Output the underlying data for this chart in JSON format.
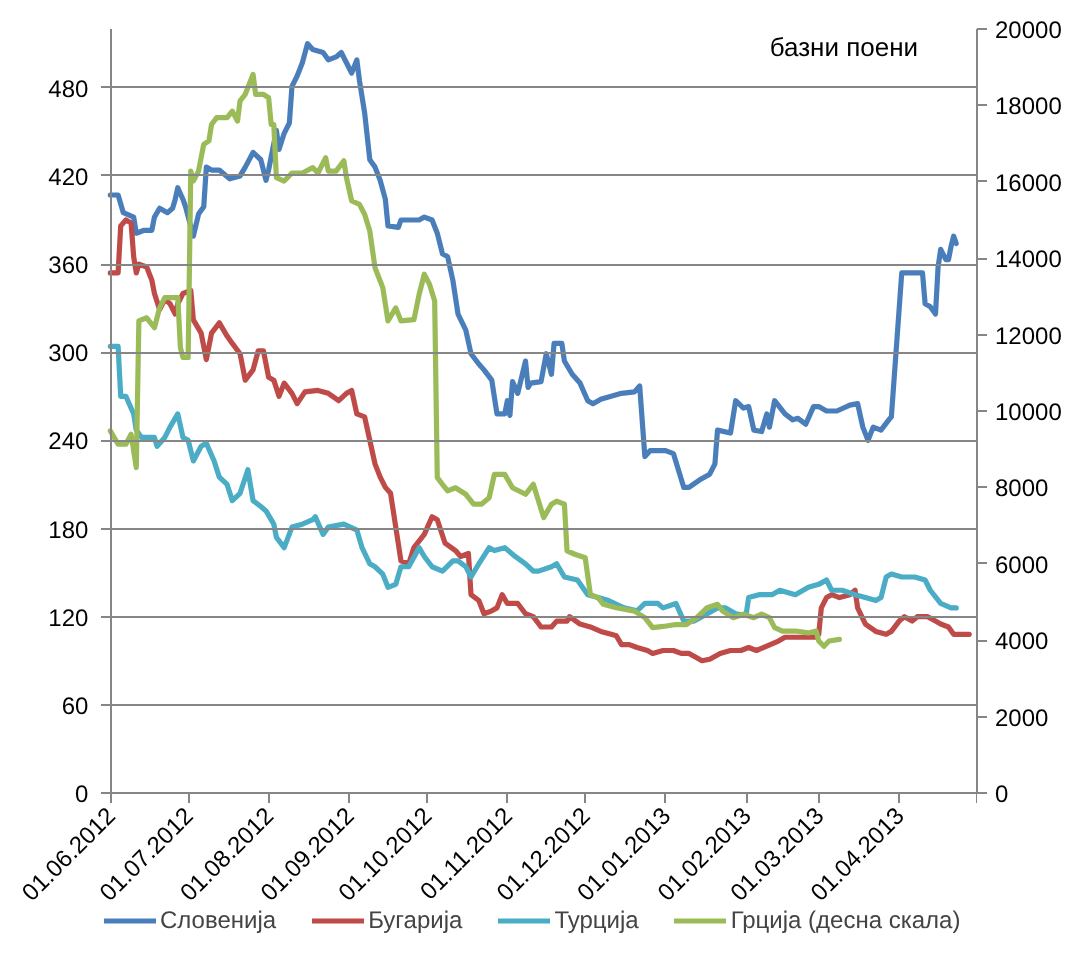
{
  "chart_data": {
    "type": "line",
    "annotations": [
      "базни поени"
    ],
    "xlim": [
      "2012-06-01",
      "2013-05-01"
    ],
    "xticks": [
      {
        "value": "2012-06-01",
        "label": "01.06.2012"
      },
      {
        "value": "2012-07-01",
        "label": "01.07.2012"
      },
      {
        "value": "2012-08-01",
        "label": "01.08.2012"
      },
      {
        "value": "2012-09-01",
        "label": "01.09.2012"
      },
      {
        "value": "2012-10-01",
        "label": "01.10.2012"
      },
      {
        "value": "2012-11-01",
        "label": "01.11.2012"
      },
      {
        "value": "2012-12-01",
        "label": "01.12.2012"
      },
      {
        "value": "2013-01-01",
        "label": "01.01.2013"
      },
      {
        "value": "2013-02-01",
        "label": "01.02.2013"
      },
      {
        "value": "2013-03-01",
        "label": "01.03.2013"
      },
      {
        "value": "2013-04-01",
        "label": "01.04.2013"
      },
      {
        "value": "2013-05-01",
        "label": null
      }
    ],
    "ylim": [
      0,
      520
    ],
    "yticks": [
      0,
      60,
      120,
      180,
      240,
      300,
      360,
      420,
      480
    ],
    "y2lim": [
      0,
      20000
    ],
    "y2ticks": [
      0,
      2000,
      4000,
      6000,
      8000,
      10000,
      12000,
      14000,
      16000,
      18000,
      20000
    ],
    "grid": "y",
    "legend": "bottom",
    "series": [
      {
        "name": "Словенија",
        "color": "#4a7ebb",
        "x": [
          "2012-06-01",
          "2012-06-04",
          "2012-06-06",
          "2012-06-10",
          "2012-06-11",
          "2012-06-14",
          "2012-06-17",
          "2012-06-18",
          "2012-06-20",
          "2012-06-23",
          "2012-06-25",
          "2012-06-26",
          "2012-06-27",
          "2012-06-29",
          "2012-06-30",
          "2012-07-03",
          "2012-07-05",
          "2012-07-07",
          "2012-07-08",
          "2012-07-10",
          "2012-07-13",
          "2012-07-17",
          "2012-07-21",
          "2012-07-23",
          "2012-07-26",
          "2012-07-29",
          "2012-07-31",
          "2012-08-01",
          "2012-08-04",
          "2012-08-05",
          "2012-08-07",
          "2012-08-09",
          "2012-08-10",
          "2012-08-12",
          "2012-08-14",
          "2012-08-16",
          "2012-08-18",
          "2012-08-22",
          "2012-08-24",
          "2012-08-27",
          "2012-08-29",
          "2012-08-31",
          "2012-09-02",
          "2012-09-04",
          "2012-09-05",
          "2012-09-07",
          "2012-09-09",
          "2012-09-11",
          "2012-09-13",
          "2012-09-15",
          "2012-09-16",
          "2012-09-20",
          "2012-09-21",
          "2012-09-28",
          "2012-09-30",
          "2012-10-03",
          "2012-10-05",
          "2012-10-07",
          "2012-10-09",
          "2012-10-11",
          "2012-10-13",
          "2012-10-16",
          "2012-10-18",
          "2012-10-21",
          "2012-10-23",
          "2012-10-26",
          "2012-10-28",
          "2012-10-31",
          "2012-11-01",
          "2012-11-02",
          "2012-11-03",
          "2012-11-05",
          "2012-11-08",
          "2012-11-09",
          "2012-11-10",
          "2012-11-14",
          "2012-11-16",
          "2012-11-18",
          "2012-11-19",
          "2012-11-22",
          "2012-11-23",
          "2012-11-26",
          "2012-11-29",
          "2012-12-02",
          "2012-12-04",
          "2012-12-07",
          "2012-12-11",
          "2012-12-15",
          "2012-12-20",
          "2012-12-22",
          "2012-12-24",
          "2012-12-26",
          "2013-01-01",
          "2013-01-04",
          "2013-01-08",
          "2013-01-10",
          "2013-01-14",
          "2013-01-18",
          "2013-01-20",
          "2013-01-21",
          "2013-01-26",
          "2013-01-28",
          "2013-01-31",
          "2013-02-02",
          "2013-02-04",
          "2013-02-07",
          "2013-02-09",
          "2013-02-10",
          "2013-02-12",
          "2013-02-16",
          "2013-02-19",
          "2013-02-21",
          "2013-02-24",
          "2013-02-27",
          "2013-03-01",
          "2013-03-04",
          "2013-03-08",
          "2013-03-13",
          "2013-03-16",
          "2013-03-18",
          "2013-03-20",
          "2013-03-22",
          "2013-03-25",
          "2013-03-28",
          "2013-03-29",
          "2013-04-02",
          "2013-04-10",
          "2013-04-11",
          "2013-04-13",
          "2013-04-15",
          "2013-04-16",
          "2013-04-17",
          "2013-04-19",
          "2013-04-20",
          "2013-04-21",
          "2013-04-22",
          "2013-04-23"
        ],
        "values": [
          407,
          407,
          395,
          392,
          381,
          383,
          383,
          392,
          398,
          395,
          398,
          404,
          412,
          404,
          399,
          379,
          394,
          399,
          426,
          424,
          424,
          418,
          420,
          426,
          436,
          431,
          417,
          424,
          451,
          438,
          449,
          456,
          481,
          488,
          497,
          510,
          506,
          504,
          499,
          501,
          504,
          497,
          490,
          499,
          485,
          463,
          431,
          426,
          417,
          404,
          386,
          385,
          390,
          390,
          392,
          390,
          381,
          367,
          365,
          349,
          326,
          315,
          299,
          292,
          288,
          281,
          258,
          258,
          267,
          257,
          280,
          272,
          294,
          276,
          279,
          280,
          299,
          285,
          306,
          306,
          294,
          285,
          279,
          267,
          265,
          268,
          270,
          272,
          273,
          277,
          229,
          233,
          233,
          231,
          208,
          208,
          213,
          217,
          224,
          247,
          245,
          267,
          262,
          263,
          247,
          246,
          258,
          249,
          267,
          258,
          254,
          255,
          251,
          263,
          263,
          260,
          260,
          264,
          265,
          249,
          240,
          249,
          247,
          254,
          256,
          354,
          354,
          333,
          331,
          326,
          358,
          370,
          363,
          363,
          372,
          379,
          374
        ]
      },
      {
        "name": "Бугарија",
        "color": "#be4b48",
        "x": [
          "2012-06-01",
          "2012-06-04",
          "2012-06-05",
          "2012-06-07",
          "2012-06-09",
          "2012-06-10",
          "2012-06-11",
          "2012-06-12",
          "2012-06-15",
          "2012-06-17",
          "2012-06-18",
          "2012-06-20",
          "2012-06-22",
          "2012-06-24",
          "2012-06-26",
          "2012-06-27",
          "2012-06-29",
          "2012-07-02",
          "2012-07-03",
          "2012-07-06",
          "2012-07-08",
          "2012-07-10",
          "2012-07-13",
          "2012-07-16",
          "2012-07-18",
          "2012-07-21",
          "2012-07-23",
          "2012-07-26",
          "2012-07-28",
          "2012-07-30",
          "2012-08-01",
          "2012-08-03",
          "2012-08-05",
          "2012-08-07",
          "2012-08-10",
          "2012-08-12",
          "2012-08-15",
          "2012-08-20",
          "2012-08-24",
          "2012-08-28",
          "2012-08-31",
          "2012-09-02",
          "2012-09-04",
          "2012-09-07",
          "2012-09-09",
          "2012-09-11",
          "2012-09-13",
          "2012-09-15",
          "2012-09-17",
          "2012-09-19",
          "2012-09-21",
          "2012-09-24",
          "2012-09-26",
          "2012-09-30",
          "2012-10-03",
          "2012-10-05",
          "2012-10-08",
          "2012-10-12",
          "2012-10-14",
          "2012-10-17",
          "2012-10-18",
          "2012-10-21",
          "2012-10-23",
          "2012-10-26",
          "2012-10-28",
          "2012-10-30",
          "2012-11-01",
          "2012-11-05",
          "2012-11-08",
          "2012-11-11",
          "2012-11-14",
          "2012-11-18",
          "2012-11-20",
          "2012-11-24",
          "2012-11-25",
          "2012-11-29",
          "2012-12-03",
          "2012-12-07",
          "2012-12-11",
          "2012-12-13",
          "2012-12-15",
          "2012-12-18",
          "2012-12-21",
          "2012-12-25",
          "2012-12-27",
          "2012-12-31",
          "2013-01-04",
          "2013-01-07",
          "2013-01-10",
          "2013-01-13",
          "2013-01-15",
          "2013-01-18",
          "2013-01-22",
          "2013-01-26",
          "2013-01-30",
          "2013-02-02",
          "2013-02-05",
          "2013-02-09",
          "2013-02-13",
          "2013-02-16",
          "2013-02-25",
          "2013-02-28",
          "2013-03-01",
          "2013-03-02",
          "2013-03-04",
          "2013-03-06",
          "2013-03-09",
          "2013-03-13",
          "2013-03-15",
          "2013-03-16",
          "2013-03-19",
          "2013-03-23",
          "2013-03-27",
          "2013-03-29",
          "2013-04-01",
          "2013-04-03",
          "2013-04-06",
          "2013-04-08",
          "2013-04-12",
          "2013-04-15",
          "2013-04-17",
          "2013-04-20",
          "2013-04-22",
          "2013-04-28"
        ],
        "values": [
          354,
          354,
          386,
          390,
          388,
          365,
          354,
          360,
          358,
          349,
          340,
          329,
          336,
          333,
          326,
          333,
          340,
          342,
          322,
          313,
          295,
          313,
          320,
          311,
          306,
          299,
          281,
          288,
          301,
          301,
          283,
          281,
          270,
          279,
          272,
          265,
          273,
          274,
          272,
          267,
          272,
          274,
          258,
          256,
          240,
          224,
          215,
          208,
          204,
          181,
          158,
          156,
          167,
          176,
          188,
          186,
          170,
          165,
          161,
          163,
          135,
          131,
          122,
          124,
          126,
          135,
          129,
          129,
          122,
          120,
          113,
          113,
          117,
          117,
          120,
          115,
          113,
          110,
          108,
          107,
          101,
          101,
          99,
          97,
          95,
          97,
          97,
          95,
          95,
          92,
          90,
          91,
          95,
          97,
          97,
          99,
          97,
          100,
          103,
          106,
          106,
          106,
          108,
          126,
          133,
          135,
          133,
          135,
          138,
          126,
          115,
          110,
          108,
          110,
          117,
          120,
          117,
          120,
          120,
          117,
          115,
          113,
          108,
          108
        ]
      },
      {
        "name": "Турција",
        "color": "#4bacc6",
        "x": [
          "2012-06-01",
          "2012-06-04",
          "2012-06-05",
          "2012-06-07",
          "2012-06-10",
          "2012-06-11",
          "2012-06-13",
          "2012-06-18",
          "2012-06-19",
          "2012-06-22",
          "2012-06-24",
          "2012-06-27",
          "2012-06-29",
          "2012-07-01",
          "2012-07-03",
          "2012-07-06",
          "2012-07-08",
          "2012-07-11",
          "2012-07-13",
          "2012-07-16",
          "2012-07-18",
          "2012-07-21",
          "2012-07-24",
          "2012-07-26",
          "2012-07-29",
          "2012-07-31",
          "2012-08-03",
          "2012-08-04",
          "2012-08-07",
          "2012-08-10",
          "2012-08-14",
          "2012-08-18",
          "2012-08-19",
          "2012-08-22",
          "2012-08-24",
          "2012-08-30",
          "2012-09-04",
          "2012-09-06",
          "2012-09-09",
          "2012-09-11",
          "2012-09-14",
          "2012-09-16",
          "2012-09-19",
          "2012-09-21",
          "2012-09-24",
          "2012-09-28",
          "2012-09-30",
          "2012-10-03",
          "2012-10-07",
          "2012-10-11",
          "2012-10-13",
          "2012-10-16",
          "2012-10-18",
          "2012-10-21",
          "2012-10-25",
          "2012-10-27",
          "2012-10-31",
          "2012-11-04",
          "2012-11-08",
          "2012-11-11",
          "2012-11-13",
          "2012-11-18",
          "2012-11-20",
          "2012-11-23",
          "2012-11-28",
          "2012-12-02",
          "2012-12-06",
          "2012-12-10",
          "2012-12-16",
          "2012-12-21",
          "2012-12-24",
          "2012-12-29",
          "2012-12-31",
          "2013-01-05",
          "2013-01-08",
          "2013-01-12",
          "2013-01-15",
          "2013-01-21",
          "2013-01-24",
          "2013-01-28",
          "2013-02-01",
          "2013-02-02",
          "2013-02-06",
          "2013-02-11",
          "2013-02-14",
          "2013-02-20",
          "2013-02-25",
          "2013-03-01",
          "2013-03-04",
          "2013-03-06",
          "2013-03-10",
          "2013-03-15",
          "2013-03-19",
          "2013-03-23",
          "2013-03-25",
          "2013-03-27",
          "2013-03-29",
          "2013-04-02",
          "2013-04-07",
          "2013-04-11",
          "2013-04-13",
          "2013-04-17",
          "2013-04-21",
          "2013-04-23"
        ],
        "values": [
          304,
          304,
          270,
          270,
          258,
          247,
          242,
          242,
          236,
          242,
          249,
          258,
          242,
          240,
          226,
          236,
          238,
          226,
          215,
          210,
          199,
          204,
          220,
          199,
          195,
          192,
          183,
          174,
          167,
          181,
          183,
          186,
          188,
          176,
          181,
          183,
          179,
          167,
          156,
          154,
          149,
          140,
          142,
          154,
          154,
          167,
          161,
          154,
          151,
          158,
          158,
          154,
          147,
          156,
          167,
          165,
          167,
          161,
          156,
          151,
          151,
          154,
          156,
          147,
          145,
          135,
          133,
          131,
          126,
          124,
          129,
          129,
          126,
          129,
          117,
          117,
          120,
          126,
          126,
          122,
          121,
          133,
          135,
          135,
          138,
          135,
          140,
          142,
          145,
          138,
          138,
          135,
          133,
          131,
          133,
          147,
          149,
          147,
          147,
          145,
          138,
          129,
          126,
          126
        ]
      },
      {
        "name": "Грција (десна скала)",
        "color": "#9bbb59",
        "axis": "y2",
        "x": [
          "2012-06-01",
          "2012-06-04",
          "2012-06-07",
          "2012-06-09",
          "2012-06-11",
          "2012-06-12",
          "2012-06-15",
          "2012-06-18",
          "2012-06-20",
          "2012-06-22",
          "2012-06-27",
          "2012-06-28",
          "2012-06-29",
          "2012-07-01",
          "2012-07-02",
          "2012-07-03",
          "2012-07-05",
          "2012-07-07",
          "2012-07-09",
          "2012-07-10",
          "2012-07-12",
          "2012-07-16",
          "2012-07-18",
          "2012-07-20",
          "2012-07-21",
          "2012-07-23",
          "2012-07-26",
          "2012-07-27",
          "2012-07-30",
          "2012-08-01",
          "2012-08-02",
          "2012-08-03",
          "2012-08-04",
          "2012-08-07",
          "2012-08-10",
          "2012-08-14",
          "2012-08-18",
          "2012-08-20",
          "2012-08-23",
          "2012-08-24",
          "2012-08-27",
          "2012-08-30",
          "2012-08-31",
          "2012-09-02",
          "2012-09-05",
          "2012-09-07",
          "2012-09-09",
          "2012-09-11",
          "2012-09-14",
          "2012-09-16",
          "2012-09-19",
          "2012-09-21",
          "2012-09-26",
          "2012-09-28",
          "2012-09-30",
          "2012-10-02",
          "2012-10-04",
          "2012-10-05",
          "2012-10-07",
          "2012-10-09",
          "2012-10-12",
          "2012-10-16",
          "2012-10-19",
          "2012-10-22",
          "2012-10-25",
          "2012-10-27",
          "2012-10-31",
          "2012-11-03",
          "2012-11-08",
          "2012-11-11",
          "2012-11-15",
          "2012-11-18",
          "2012-11-20",
          "2012-11-23",
          "2012-11-24",
          "2012-11-27",
          "2012-12-01",
          "2012-12-03",
          "2012-12-06",
          "2012-12-08",
          "2012-12-13",
          "2012-12-20",
          "2012-12-24",
          "2012-12-27",
          "2012-12-31",
          "2013-01-05",
          "2013-01-09",
          "2013-01-13",
          "2013-01-17",
          "2013-01-21",
          "2013-01-23",
          "2013-01-27",
          "2013-01-31",
          "2013-02-04",
          "2013-02-07",
          "2013-02-10",
          "2013-02-12",
          "2013-02-15",
          "2013-02-20",
          "2013-02-25",
          "2013-02-28",
          "2013-03-01",
          "2013-03-03",
          "2013-03-05",
          "2013-03-09"
        ],
        "values": [
          9480,
          9130,
          9130,
          9390,
          8520,
          12360,
          12440,
          12180,
          12700,
          12970,
          12970,
          11660,
          11400,
          11400,
          16280,
          16020,
          16280,
          16980,
          17070,
          17500,
          17680,
          17680,
          17850,
          17590,
          18120,
          18290,
          18810,
          18290,
          18290,
          18200,
          17500,
          17500,
          16110,
          16020,
          16230,
          16230,
          16370,
          16230,
          16630,
          16280,
          16280,
          16550,
          16110,
          15500,
          15410,
          15150,
          14710,
          13750,
          13230,
          12360,
          12700,
          12360,
          12390,
          13050,
          13580,
          13320,
          12880,
          8260,
          8080,
          7910,
          7990,
          7820,
          7560,
          7560,
          7730,
          8340,
          8340,
          7990,
          7820,
          8080,
          7210,
          7560,
          7640,
          7560,
          6340,
          6250,
          6160,
          5200,
          5110,
          4940,
          4850,
          4760,
          4590,
          4330,
          4360,
          4410,
          4410,
          4590,
          4850,
          4940,
          4760,
          4590,
          4680,
          4590,
          4680,
          4590,
          4330,
          4240,
          4240,
          4190,
          4240,
          3980,
          3840,
          3980,
          4020
        ]
      }
    ]
  }
}
